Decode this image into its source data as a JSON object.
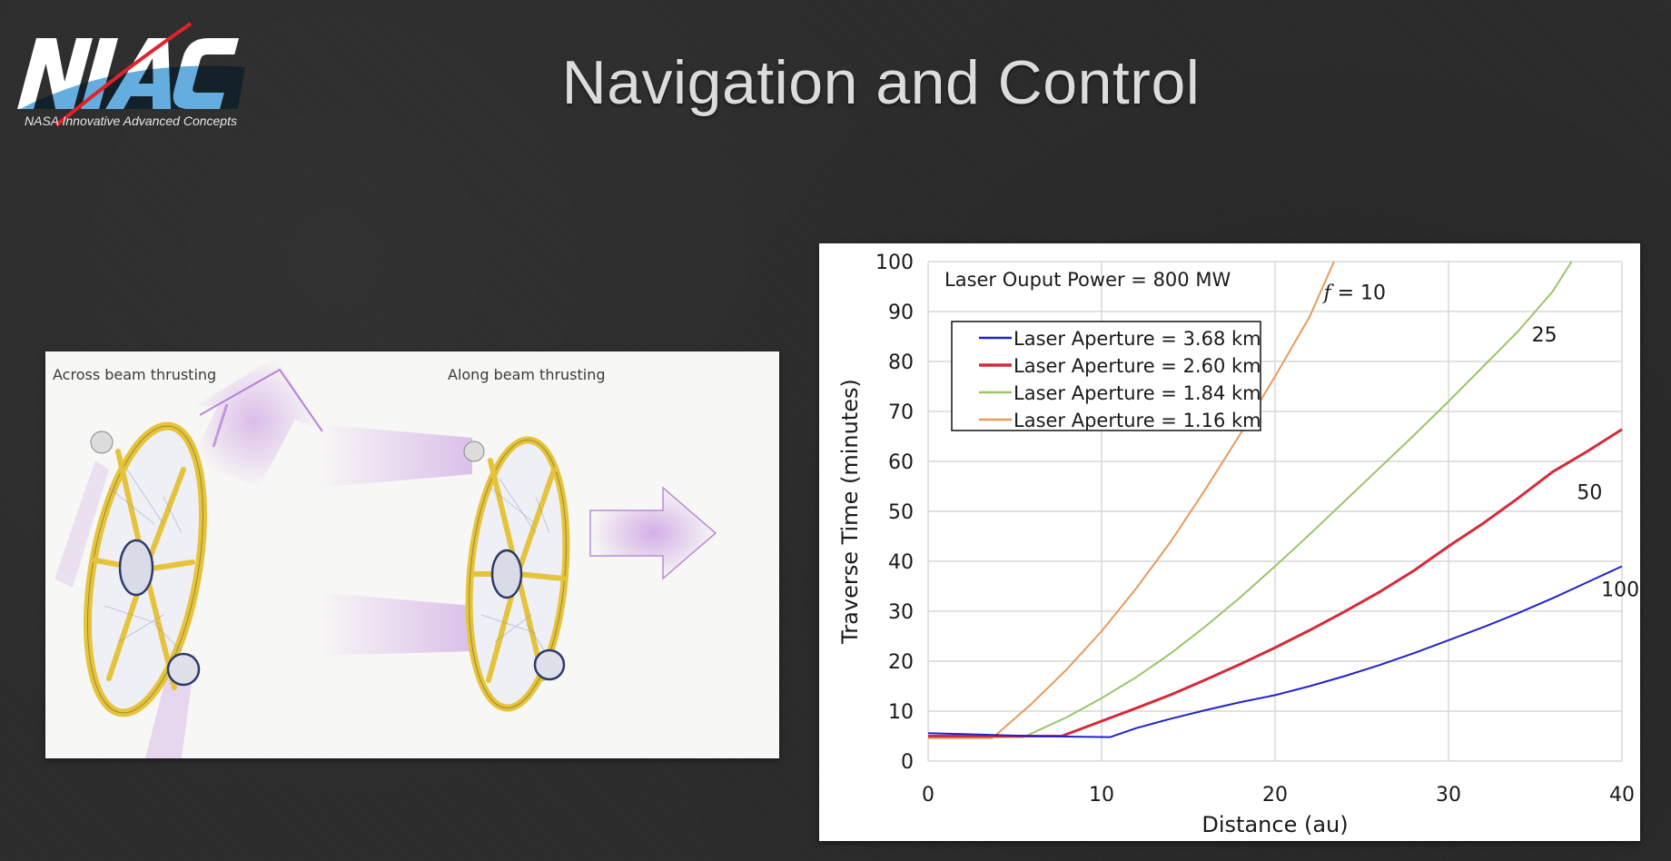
{
  "slide": {
    "title": "Navigation and Control",
    "logo": {
      "text": "NIAC",
      "subtitle": "NASA Innovative Advanced Concepts"
    }
  },
  "illustration": {
    "left_label": "Across beam thrusting",
    "right_label": "Along beam thrusting",
    "colors": {
      "ring": "#e8c53a",
      "thrust": "#c79ae0",
      "ink": "#2f3a6b"
    }
  },
  "chart_data": {
    "type": "line",
    "title": "",
    "annotation": "Laser Ouput Power = 800 MW",
    "xlabel": "Distance (au)",
    "ylabel": "Traverse Time (minutes)",
    "xlim": [
      0,
      40
    ],
    "ylim": [
      0,
      100
    ],
    "xticks": [
      0,
      10,
      20,
      30,
      40
    ],
    "yticks": [
      0,
      10,
      20,
      30,
      40,
      50,
      60,
      70,
      80,
      90,
      100
    ],
    "grid": true,
    "legend_position": "upper-left-inset",
    "series": [
      {
        "name": "Laser Aperture = 3.68 km",
        "color": "#2323c8",
        "width": 2,
        "curve_label": "100",
        "label_pos": [
          38.8,
          33
        ],
        "x": [
          0,
          2,
          4,
          6,
          8,
          10.5,
          12,
          14,
          16,
          18,
          20,
          22,
          24,
          26,
          28,
          30,
          32,
          34,
          36,
          38,
          40
        ],
        "y": [
          5.6,
          5.4,
          5.2,
          5.0,
          4.9,
          4.8,
          6.6,
          8.5,
          10.2,
          11.8,
          13.2,
          15.0,
          17.0,
          19.2,
          21.6,
          24.2,
          26.8,
          29.6,
          32.6,
          35.8,
          39.0
        ]
      },
      {
        "name": "Laser Aperture = 2.60 km",
        "color": "#d42a3a",
        "width": 3,
        "curve_label": "50",
        "label_pos": [
          37.4,
          52.5
        ],
        "x": [
          0,
          2,
          4,
          6,
          7.7,
          10,
          12,
          14,
          16,
          18,
          20,
          22,
          24,
          26,
          28,
          30,
          32,
          34,
          36,
          38,
          40
        ],
        "y": [
          5.0,
          5.0,
          5.0,
          5.0,
          5.0,
          8.0,
          10.6,
          13.3,
          16.3,
          19.4,
          22.7,
          26.2,
          29.9,
          33.8,
          38.1,
          43.0,
          47.6,
          52.6,
          57.9,
          62.0,
          66.4
        ]
      },
      {
        "name": "Laser Aperture = 1.84 km",
        "color": "#9cc46a",
        "width": 2,
        "curve_label": "25",
        "label_pos": [
          34.8,
          84
        ],
        "x": [
          0,
          2,
          4,
          5.5,
          8,
          10,
          12,
          14,
          16,
          18,
          20,
          22,
          24,
          26,
          28,
          30,
          32,
          34,
          36,
          37.1
        ],
        "y": [
          4.8,
          4.8,
          4.8,
          4.8,
          8.8,
          12.6,
          16.8,
          21.6,
          27.0,
          32.8,
          39.0,
          45.4,
          52.0,
          58.6,
          65.2,
          72.0,
          79.0,
          86.0,
          94.0,
          100
        ]
      },
      {
        "name": "Laser Aperture = 1.16 km",
        "color": "#e89a5a",
        "width": 2,
        "curve_label": "f = 10",
        "label_pos": [
          22.8,
          92.5
        ],
        "x": [
          0,
          2,
          3.7,
          6,
          8,
          10,
          12,
          14,
          16,
          18,
          20,
          22,
          23.4
        ],
        "y": [
          4.6,
          4.6,
          4.6,
          11.6,
          18.4,
          26.0,
          34.6,
          44.0,
          54.5,
          65.5,
          77.0,
          89.0,
          100
        ]
      }
    ]
  }
}
